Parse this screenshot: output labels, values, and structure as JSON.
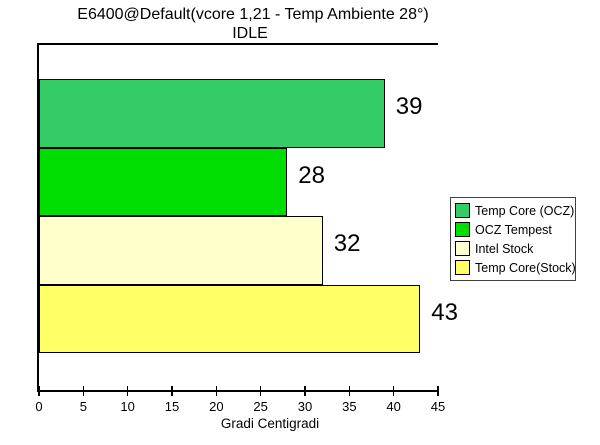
{
  "chart_data": {
    "type": "bar",
    "orientation": "horizontal",
    "title": "E6400@Default(vcore 1,21 - Temp Ambiente 28°)",
    "subtitle": "IDLE",
    "categories": [
      "Temp Core (OCZ)",
      "OCZ Tempest",
      "Intel Stock",
      "Temp Core(Stock)"
    ],
    "values": [
      39,
      28,
      32,
      43
    ],
    "value_labels": [
      "39",
      "28",
      "32",
      "43"
    ],
    "bar_colors": [
      "#33CC66",
      "#00DD00",
      "#FFFFCC",
      "#FFFF66"
    ],
    "xlabel": "Gradi Centigradi",
    "xlim": [
      0,
      45
    ],
    "xticks": [
      0,
      5,
      10,
      15,
      20,
      25,
      30,
      35,
      40,
      45
    ],
    "grid": false,
    "legend": {
      "position": "right",
      "entries": [
        {
          "label": "Temp Core (OCZ)",
          "color": "#33CC66"
        },
        {
          "label": "OCZ Tempest",
          "color": "#00DD00"
        },
        {
          "label": "Intel Stock",
          "color": "#FFFFCC"
        },
        {
          "label": "Temp Core(Stock)",
          "color": "#FFFF66"
        }
      ]
    },
    "colors": {
      "axis": "#000000",
      "text": "#000000",
      "background": "#FFFFFF",
      "legend_border": "#404040"
    }
  }
}
